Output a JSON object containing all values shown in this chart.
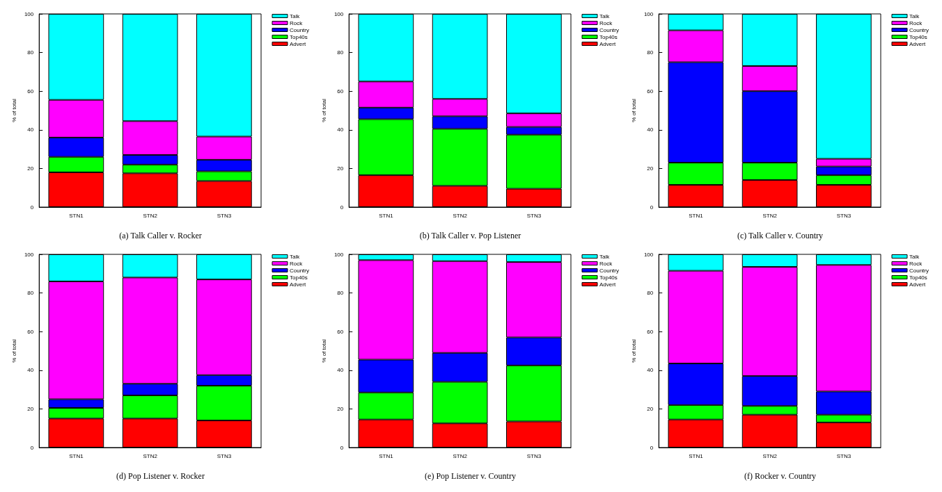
{
  "chart_data": [
    {
      "type": "bar",
      "stacked": true,
      "title": "(a) Talk Caller v. Rocker",
      "ylabel": "% of total",
      "categories": [
        "STN1",
        "STN2",
        "STN3"
      ],
      "ylim": [
        0,
        100
      ],
      "yticks": [
        0,
        20,
        40,
        60,
        80,
        100
      ],
      "grid": false,
      "legend": "top right",
      "series": [
        {
          "name": "Advert",
          "color": "#ff0000",
          "values": [
            18,
            17.5,
            13.5
          ]
        },
        {
          "name": "Top40s",
          "color": "#00ff00",
          "values": [
            8,
            4.5,
            5
          ]
        },
        {
          "name": "Country",
          "color": "#0000ff",
          "values": [
            10,
            5,
            6
          ]
        },
        {
          "name": "Rock",
          "color": "#ff00ff",
          "values": [
            19.5,
            17.5,
            12
          ]
        },
        {
          "name": "Talk",
          "color": "#00ffff",
          "values": [
            44.5,
            55.5,
            63.5
          ]
        }
      ]
    },
    {
      "type": "bar",
      "stacked": true,
      "title": "(b) Talk Caller v. Pop Listener",
      "ylabel": "% of total",
      "categories": [
        "STN1",
        "STN2",
        "STN3"
      ],
      "ylim": [
        0,
        100
      ],
      "yticks": [
        0,
        20,
        40,
        60,
        80,
        100
      ],
      "grid": false,
      "legend": "top right",
      "series": [
        {
          "name": "Advert",
          "color": "#ff0000",
          "values": [
            16.5,
            11,
            9.5
          ]
        },
        {
          "name": "Top40s",
          "color": "#00ff00",
          "values": [
            29,
            29.5,
            28
          ]
        },
        {
          "name": "Country",
          "color": "#0000ff",
          "values": [
            6,
            6.5,
            4
          ]
        },
        {
          "name": "Rock",
          "color": "#ff00ff",
          "values": [
            13.5,
            9,
            7
          ]
        },
        {
          "name": "Talk",
          "color": "#00ffff",
          "values": [
            35,
            44,
            51.5
          ]
        }
      ]
    },
    {
      "type": "bar",
      "stacked": true,
      "title": "(c) Talk Caller v. Country",
      "ylabel": "% of total",
      "categories": [
        "STN1",
        "STN2",
        "STN3"
      ],
      "ylim": [
        0,
        100
      ],
      "yticks": [
        0,
        20,
        40,
        60,
        80,
        100
      ],
      "grid": false,
      "legend": "top right",
      "series": [
        {
          "name": "Advert",
          "color": "#ff0000",
          "values": [
            11.5,
            14,
            11.5
          ]
        },
        {
          "name": "Top40s",
          "color": "#00ff00",
          "values": [
            11.5,
            9,
            5
          ]
        },
        {
          "name": "Country",
          "color": "#0000ff",
          "values": [
            52,
            37,
            4.5
          ]
        },
        {
          "name": "Rock",
          "color": "#ff00ff",
          "values": [
            16.5,
            13,
            4
          ]
        },
        {
          "name": "Talk",
          "color": "#00ffff",
          "values": [
            8.5,
            27,
            75
          ]
        }
      ]
    },
    {
      "type": "bar",
      "stacked": true,
      "title": "(d) Pop Listener v. Rocker",
      "ylabel": "% of total",
      "categories": [
        "STN1",
        "STN2",
        "STN3"
      ],
      "ylim": [
        0,
        100
      ],
      "yticks": [
        0,
        20,
        40,
        60,
        80,
        100
      ],
      "grid": false,
      "legend": "top right",
      "series": [
        {
          "name": "Advert",
          "color": "#ff0000",
          "values": [
            15,
            15,
            14
          ]
        },
        {
          "name": "Top40s",
          "color": "#00ff00",
          "values": [
            5.5,
            12,
            18
          ]
        },
        {
          "name": "Country",
          "color": "#0000ff",
          "values": [
            4.5,
            6,
            5.5
          ]
        },
        {
          "name": "Rock",
          "color": "#ff00ff",
          "values": [
            61,
            55,
            49.5
          ]
        },
        {
          "name": "Talk",
          "color": "#00ffff",
          "values": [
            14,
            12,
            13
          ]
        }
      ]
    },
    {
      "type": "bar",
      "stacked": true,
      "title": "(e) Pop Listener v. Country",
      "ylabel": "% of total",
      "categories": [
        "STN1",
        "STN2",
        "STN3"
      ],
      "ylim": [
        0,
        100
      ],
      "yticks": [
        0,
        20,
        40,
        60,
        80,
        100
      ],
      "grid": false,
      "legend": "top right",
      "series": [
        {
          "name": "Advert",
          "color": "#ff0000",
          "values": [
            14.5,
            12.5,
            13.5
          ]
        },
        {
          "name": "Top40s",
          "color": "#00ff00",
          "values": [
            14,
            21.5,
            29
          ]
        },
        {
          "name": "Country",
          "color": "#0000ff",
          "values": [
            17,
            15,
            14.5
          ]
        },
        {
          "name": "Rock",
          "color": "#ff00ff",
          "values": [
            51.5,
            47.5,
            39
          ]
        },
        {
          "name": "Talk",
          "color": "#00ffff",
          "values": [
            3,
            3.5,
            4
          ]
        }
      ]
    },
    {
      "type": "bar",
      "stacked": true,
      "title": "(f) Rocker v. Country",
      "ylabel": "% of total",
      "categories": [
        "STN1",
        "STN2",
        "STN3"
      ],
      "ylim": [
        0,
        100
      ],
      "yticks": [
        0,
        20,
        40,
        60,
        80,
        100
      ],
      "grid": false,
      "legend": "top right",
      "series": [
        {
          "name": "Advert",
          "color": "#ff0000",
          "values": [
            14.5,
            17,
            13
          ]
        },
        {
          "name": "Top40s",
          "color": "#00ff00",
          "values": [
            7.5,
            4.5,
            4
          ]
        },
        {
          "name": "Country",
          "color": "#0000ff",
          "values": [
            21.5,
            15.5,
            12
          ]
        },
        {
          "name": "Rock",
          "color": "#ff00ff",
          "values": [
            48,
            56.5,
            65.5
          ]
        },
        {
          "name": "Talk",
          "color": "#00ffff",
          "values": [
            8.5,
            6.5,
            5.5
          ]
        }
      ]
    }
  ]
}
